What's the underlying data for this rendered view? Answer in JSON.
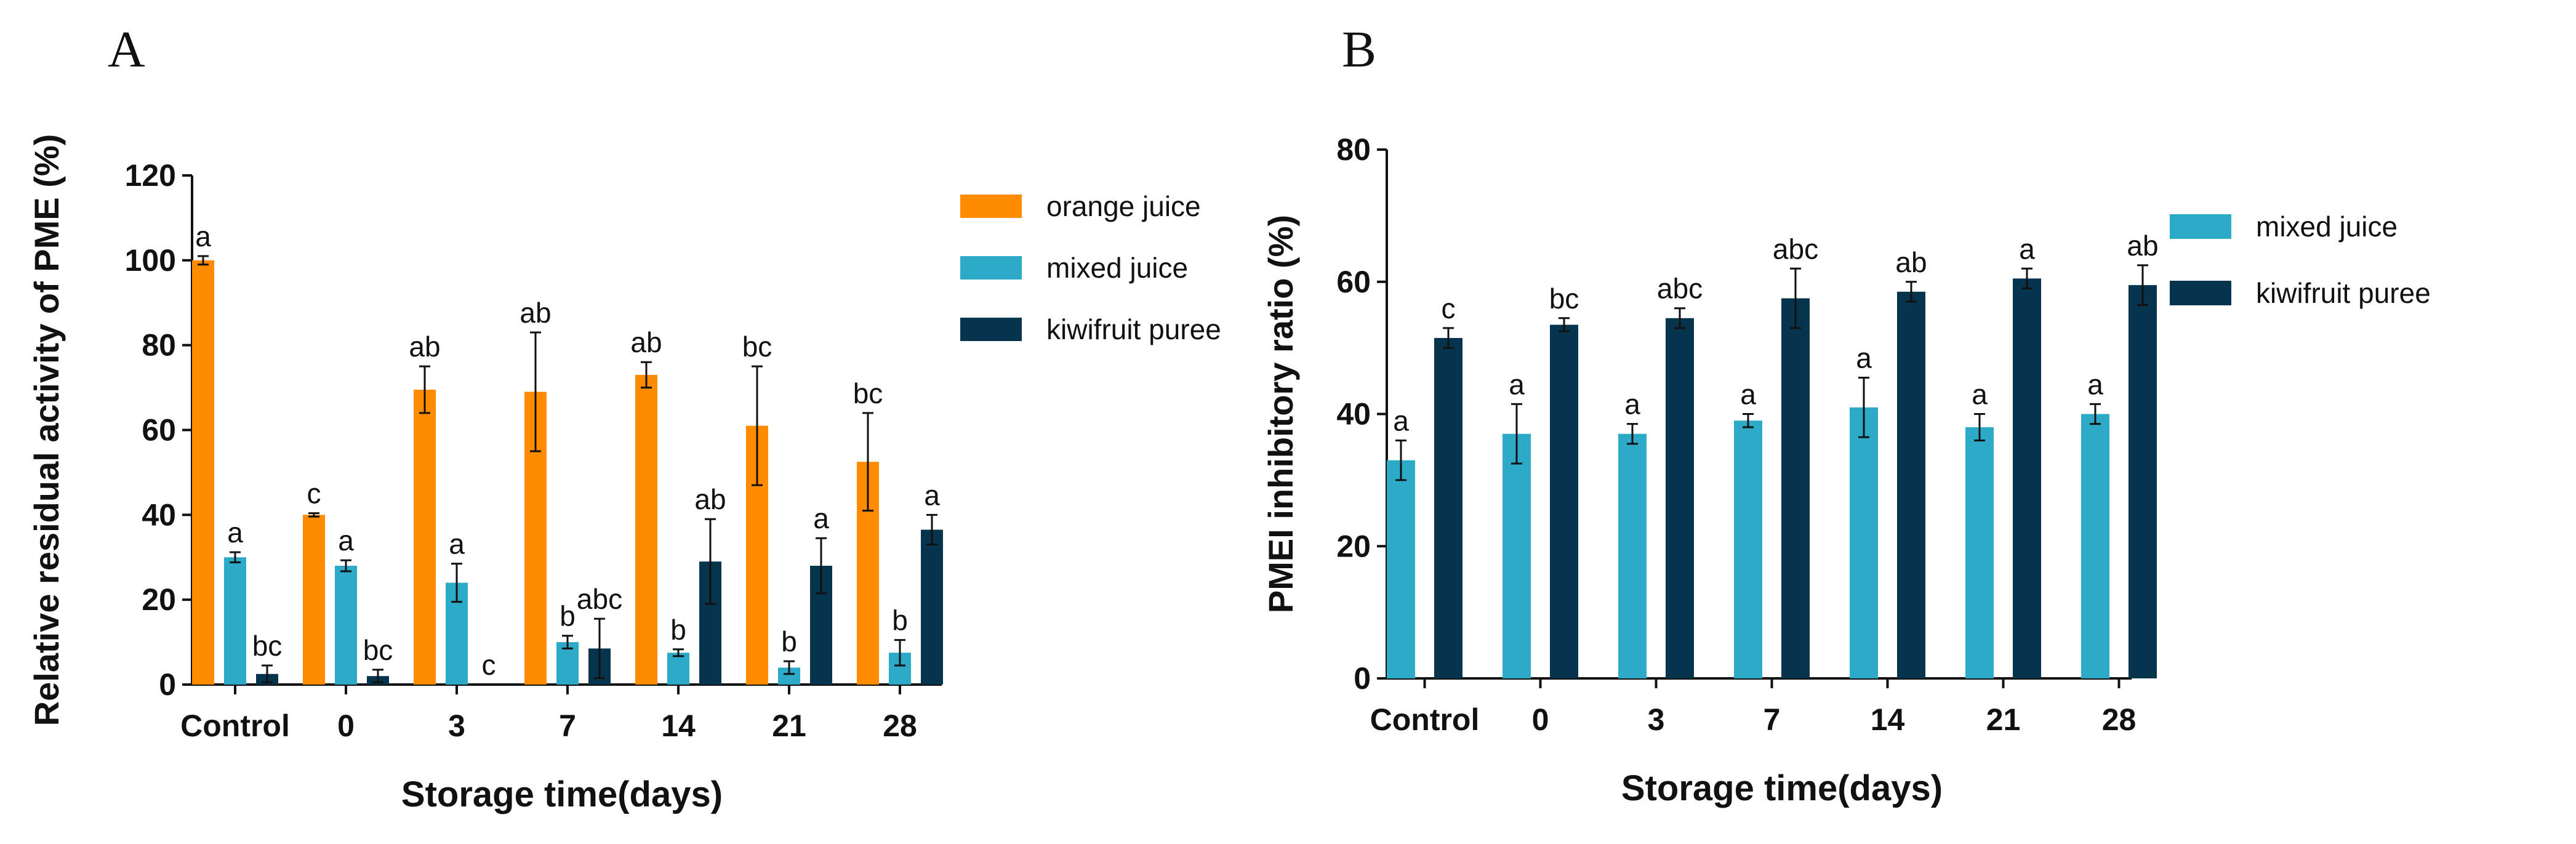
{
  "panels": {
    "a": {
      "label": "A"
    },
    "b": {
      "label": "B"
    }
  },
  "colors": {
    "orange juice": "#ff8c00",
    "mixed juice": "#2eaac9",
    "kiwifruit puree": "#07344d"
  },
  "chart_data": [
    {
      "type": "bar",
      "panel_label": "A",
      "xlabel": "Storage time(days)",
      "ylabel": "Relative residual activity of PME (%)",
      "ylim": [
        0,
        120
      ],
      "yticks": [
        0,
        20,
        40,
        60,
        80,
        100,
        120
      ],
      "categories": [
        "Control",
        "0",
        "3",
        "7",
        "14",
        "21",
        "28"
      ],
      "legend": {
        "position": "right"
      },
      "series": [
        {
          "name": "orange juice",
          "color": "#ff8c00",
          "values": [
            100,
            40,
            69.5,
            69,
            73,
            61,
            52.5
          ],
          "errors": [
            1,
            0.4,
            5.5,
            14,
            3,
            14,
            11.5
          ],
          "letters": [
            "a",
            "c",
            "ab",
            "ab",
            "ab",
            "bc",
            "bc"
          ]
        },
        {
          "name": "mixed juice",
          "color": "#2eaac9",
          "values": [
            30,
            28,
            24,
            10,
            7.5,
            4,
            7.5
          ],
          "errors": [
            1.2,
            1.3,
            4.5,
            1.5,
            0.8,
            1.5,
            3
          ],
          "letters": [
            "a",
            "a",
            "a",
            "b",
            "b",
            "b",
            "b"
          ]
        },
        {
          "name": "kiwifruit puree",
          "color": "#07344d",
          "values": [
            2.5,
            2,
            0,
            8.5,
            29,
            28,
            36.5
          ],
          "errors": [
            2,
            1.5,
            0,
            7,
            10,
            6.5,
            3.5
          ],
          "letters": [
            "bc",
            "bc",
            "c",
            "abc",
            "ab",
            "a",
            "a"
          ]
        }
      ]
    },
    {
      "type": "bar",
      "panel_label": "B",
      "xlabel": "Storage time(days)",
      "ylabel": "PMEI inhibitory ratio (%)",
      "ylim": [
        0,
        80
      ],
      "yticks": [
        0,
        20,
        40,
        60,
        80
      ],
      "categories": [
        "Control",
        "0",
        "3",
        "7",
        "14",
        "21",
        "28"
      ],
      "legend": {
        "position": "right"
      },
      "series": [
        {
          "name": "mixed juice",
          "color": "#2eaac9",
          "values": [
            33,
            37,
            37,
            39,
            41,
            38,
            40
          ],
          "errors": [
            3,
            4.5,
            1.5,
            1,
            4.5,
            2,
            1.5
          ],
          "letters": [
            "a",
            "a",
            "a",
            "a",
            "a",
            "a",
            "a"
          ]
        },
        {
          "name": "kiwifruit puree",
          "color": "#07344d",
          "values": [
            51.5,
            53.5,
            54.5,
            57.5,
            58.5,
            60.5,
            59.5
          ],
          "errors": [
            1.5,
            1,
            1.5,
            4.5,
            1.5,
            1.5,
            3
          ],
          "letters": [
            "c",
            "bc",
            "abc",
            "abc",
            "ab",
            "a",
            "ab"
          ]
        }
      ]
    }
  ]
}
